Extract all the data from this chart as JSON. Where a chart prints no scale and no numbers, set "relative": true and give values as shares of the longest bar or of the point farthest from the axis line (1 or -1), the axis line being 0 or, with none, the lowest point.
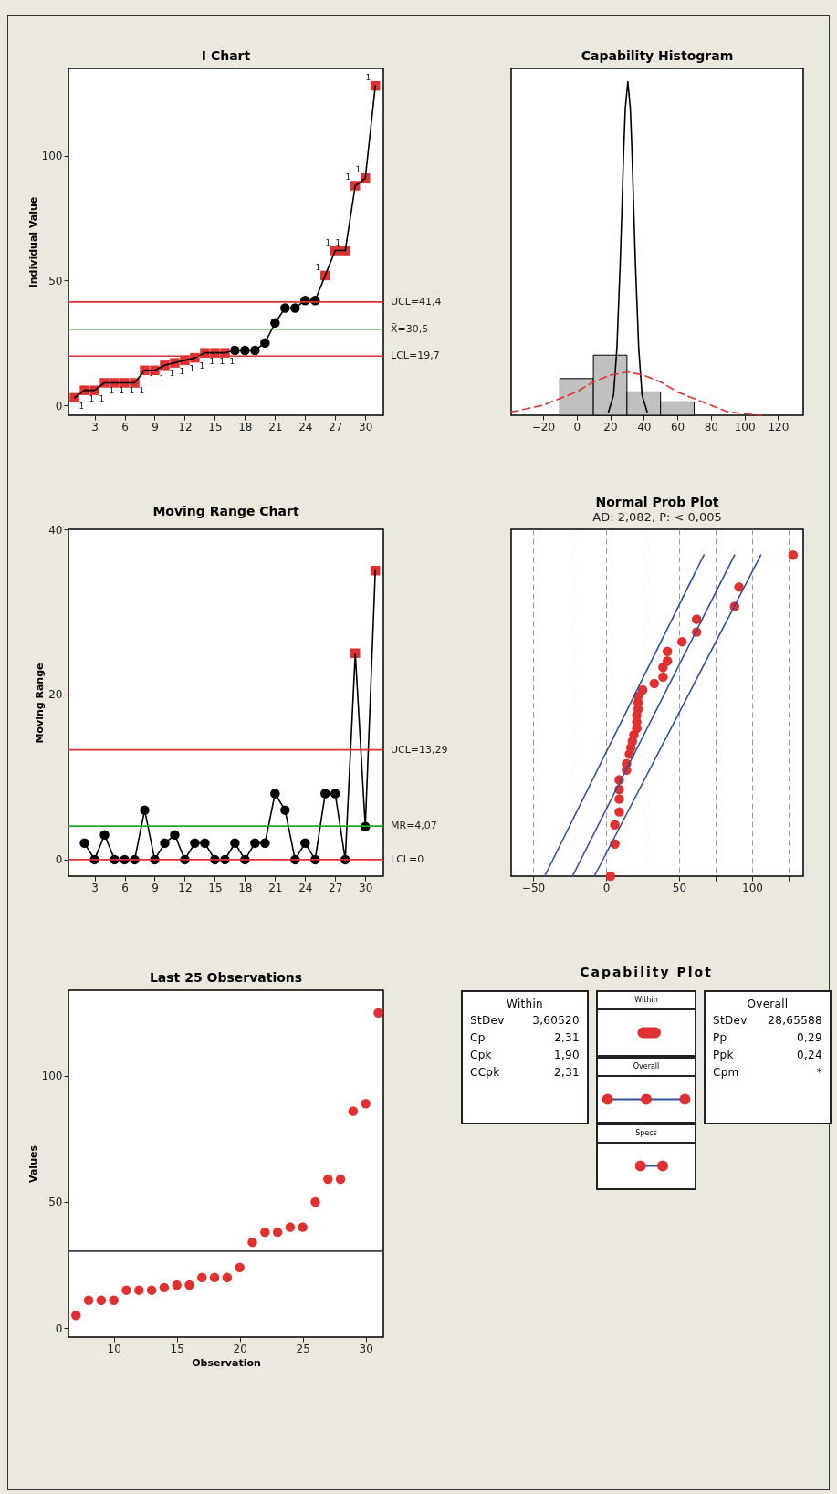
{
  "chart_data": [
    {
      "type": "line",
      "title": "I Chart",
      "ylabel": "Individual Value",
      "xlim": [
        0.4,
        31.8
      ],
      "xticks": [
        3,
        6,
        9,
        12,
        15,
        18,
        21,
        24,
        27,
        30
      ],
      "ylim": [
        -4,
        135
      ],
      "yticks": [
        0,
        50,
        100
      ],
      "x": [
        1,
        2,
        3,
        4,
        5,
        6,
        7,
        8,
        9,
        10,
        11,
        12,
        13,
        14,
        15,
        16,
        17,
        18,
        19,
        20,
        21,
        22,
        23,
        24,
        25,
        26,
        27,
        28,
        29,
        30,
        31
      ],
      "series": [
        {
          "color": "#000000",
          "marker": "none",
          "values": [
            3,
            6,
            6,
            9,
            9,
            9,
            9,
            14,
            14,
            16,
            17,
            18,
            19,
            21,
            21,
            21,
            22,
            22,
            22,
            25,
            33,
            39,
            39,
            42,
            42,
            52,
            62,
            62,
            88,
            91,
            128
          ]
        },
        {
          "type": "scatter",
          "color": "#e03030",
          "marker": "square",
          "values": [
            3,
            6,
            6,
            9,
            9,
            9,
            9,
            14,
            14,
            16,
            17,
            18,
            19,
            21,
            21,
            21,
            null,
            null,
            null,
            null,
            null,
            null,
            null,
            null,
            null,
            52,
            62,
            62,
            88,
            91,
            128
          ]
        },
        {
          "type": "scatter",
          "color": "#000000",
          "marker": "circle",
          "values": [
            null,
            null,
            null,
            null,
            null,
            null,
            null,
            null,
            null,
            null,
            null,
            null,
            null,
            null,
            null,
            null,
            22,
            22,
            22,
            25,
            33,
            39,
            39,
            42,
            42,
            null,
            null,
            null,
            null,
            null,
            null
          ]
        }
      ],
      "ref_lines": [
        {
          "axis": "y",
          "value": 41.4,
          "label": "UCL=41,4",
          "color": "#e03030"
        },
        {
          "axis": "y",
          "value": 30.5,
          "label": "X̄=30,5",
          "color": "#22aa22"
        },
        {
          "axis": "y",
          "value": 19.7,
          "label": "LCL=19,7",
          "color": "#e03030"
        }
      ],
      "annotations": [
        {
          "text": "1",
          "x": 1,
          "y": 3
        },
        {
          "text": "1",
          "x": 2,
          "y": 6
        },
        {
          "text": "1",
          "x": 3,
          "y": 6
        },
        {
          "text": "1",
          "x": 4,
          "y": 9
        },
        {
          "text": "1",
          "x": 5,
          "y": 9
        },
        {
          "text": "1",
          "x": 6,
          "y": 9
        },
        {
          "text": "1",
          "x": 7,
          "y": 9
        },
        {
          "text": "1",
          "x": 8,
          "y": 14
        },
        {
          "text": "1",
          "x": 9,
          "y": 14
        },
        {
          "text": "1",
          "x": 10,
          "y": 16
        },
        {
          "text": "1",
          "x": 11,
          "y": 17
        },
        {
          "text": "1",
          "x": 12,
          "y": 18
        },
        {
          "text": "1",
          "x": 13,
          "y": 19
        },
        {
          "text": "1",
          "x": 14,
          "y": 21
        },
        {
          "text": "1",
          "x": 15,
          "y": 21
        },
        {
          "text": "1",
          "x": 16,
          "y": 21
        },
        {
          "text": "1",
          "x": 26,
          "y": 52
        },
        {
          "text": "1",
          "x": 27,
          "y": 62
        },
        {
          "text": "1",
          "x": 28,
          "y": 62
        },
        {
          "text": "1",
          "x": 29,
          "y": 88
        },
        {
          "text": "1",
          "x": 30,
          "y": 91
        },
        {
          "text": "1",
          "x": 31,
          "y": 128
        }
      ]
    },
    {
      "type": "histogram",
      "title": "Capability Histogram",
      "relative": true,
      "bins": [
        -10,
        10,
        30,
        50,
        70
      ],
      "values": [
        0.11,
        0.18,
        0.07,
        0.04
      ],
      "color": "#c0c0c0",
      "xlim": [
        -39,
        135
      ],
      "xticks": [
        -20,
        0,
        20,
        40,
        60,
        80,
        100,
        120
      ],
      "series": [
        {
          "type": "line",
          "color": "#000000",
          "x": [
            19,
            22,
            24,
            26,
            27,
            28,
            29,
            30.5,
            32,
            33,
            34,
            35,
            37,
            39,
            42
          ],
          "values": [
            0.01,
            0.06,
            0.2,
            0.46,
            0.62,
            0.79,
            0.92,
            1,
            0.92,
            0.79,
            0.62,
            0.46,
            0.2,
            0.06,
            0.01
          ]
        },
        {
          "type": "line",
          "color": "#e03030",
          "line_style": "dashed",
          "x": [
            -39,
            -20,
            -10,
            0,
            10,
            20,
            30.5,
            40,
            50,
            60,
            70,
            80,
            90,
            110
          ],
          "values": [
            0.01,
            0.03,
            0.05,
            0.07,
            0.1,
            0.12,
            0.13,
            0.12,
            0.1,
            0.07,
            0.05,
            0.03,
            0.01,
            0
          ]
        }
      ]
    },
    {
      "type": "line",
      "title": "Moving Range Chart",
      "ylabel": "Moving Range",
      "xlim": [
        0.4,
        31.8
      ],
      "xticks": [
        3,
        6,
        9,
        12,
        15,
        18,
        21,
        24,
        27,
        30
      ],
      "ylim": [
        -2,
        40
      ],
      "yticks": [
        0,
        20,
        40
      ],
      "x": [
        2,
        3,
        4,
        5,
        6,
        7,
        8,
        9,
        10,
        11,
        12,
        13,
        14,
        15,
        16,
        17,
        18,
        19,
        20,
        21,
        22,
        23,
        24,
        25,
        26,
        27,
        28,
        29,
        30,
        31
      ],
      "series": [
        {
          "color": "#000000",
          "marker": "none",
          "values": [
            2,
            0,
            3,
            0,
            0,
            0,
            6,
            0,
            2,
            3,
            0,
            2,
            2,
            0,
            0,
            2,
            0,
            2,
            2,
            8,
            6,
            0,
            2,
            0,
            8,
            8,
            0,
            25,
            4,
            35
          ]
        },
        {
          "type": "scatter",
          "color": "#e03030",
          "marker": "square",
          "values": [
            null,
            null,
            null,
            null,
            null,
            null,
            null,
            null,
            null,
            null,
            null,
            null,
            null,
            null,
            null,
            null,
            null,
            null,
            null,
            null,
            null,
            null,
            null,
            null,
            null,
            null,
            null,
            25,
            null,
            35
          ]
        },
        {
          "type": "scatter",
          "color": "#000000",
          "marker": "circle",
          "values": [
            2,
            0,
            3,
            0,
            0,
            0,
            6,
            0,
            2,
            3,
            0,
            2,
            2,
            0,
            0,
            2,
            0,
            2,
            2,
            8,
            6,
            0,
            2,
            0,
            8,
            8,
            0,
            null,
            4,
            null
          ]
        }
      ],
      "ref_lines": [
        {
          "axis": "y",
          "value": 13.29,
          "label": "UCL=13,29",
          "color": "#e03030"
        },
        {
          "axis": "y",
          "value": 4.07,
          "label": "M̄R̄=4,07",
          "color": "#22aa22"
        },
        {
          "axis": "y",
          "value": 0,
          "label": "LCL=0",
          "color": "#e03030"
        }
      ]
    },
    {
      "type": "line",
      "title": "Normal Prob Plot",
      "subtitle": "AD: 2,082, P: < 0,005",
      "relative": true,
      "grid": "x",
      "xlim": [
        -65,
        135
      ],
      "xticks": [
        -50,
        {
          "value": -25,
          "label": null
        },
        0,
        {
          "value": 25,
          "label": null
        },
        50,
        {
          "value": 75,
          "label": null
        },
        100,
        {
          "value": 125,
          "label": null
        }
      ],
      "series": [
        {
          "type": "scatter",
          "color": "#e03030",
          "marker": "circle",
          "x": [
            3,
            6,
            6,
            9,
            9,
            9,
            9,
            14,
            14,
            16,
            17,
            18,
            19,
            21,
            21,
            21,
            22,
            22,
            22,
            25,
            33,
            39,
            39,
            42,
            42,
            52,
            62,
            62,
            88,
            91,
            128
          ],
          "values": [
            0,
            0.1,
            0.16,
            0.2,
            0.24,
            0.27,
            0.3,
            0.33,
            0.35,
            0.38,
            0.4,
            0.42,
            0.44,
            0.46,
            0.48,
            0.5,
            0.52,
            0.54,
            0.56,
            0.58,
            0.6,
            0.62,
            0.65,
            0.67,
            0.7,
            0.73,
            0.76,
            0.8,
            0.84,
            0.9,
            1
          ]
        },
        {
          "type": "line",
          "color": "#3050a0",
          "x": [
            -42,
            67
          ],
          "values": [
            0,
            1
          ]
        },
        {
          "type": "line",
          "color": "#3050a0",
          "x": [
            -23,
            88
          ],
          "values": [
            0,
            1
          ]
        },
        {
          "type": "line",
          "color": "#3050a0",
          "x": [
            -8,
            106
          ],
          "values": [
            0,
            1
          ]
        }
      ]
    },
    {
      "type": "scatter",
      "title": "Last 25 Observations",
      "xlabel": "Observation",
      "ylabel": "Values",
      "color": "#e03030",
      "marker": "circle",
      "xlim": [
        6.4,
        31.4
      ],
      "xticks": [
        10,
        15,
        20,
        25,
        30
      ],
      "ylim": [
        -3.6,
        134
      ],
      "yticks": [
        0,
        50,
        100
      ],
      "x": [
        7,
        8,
        9,
        10,
        11,
        12,
        13,
        14,
        15,
        16,
        17,
        18,
        19,
        20,
        21,
        22,
        23,
        24,
        25,
        26,
        27,
        28,
        29,
        30,
        31
      ],
      "values": [
        5,
        11,
        11,
        11,
        15,
        15,
        15,
        16,
        17,
        17,
        20,
        20,
        20,
        24,
        34,
        38,
        38,
        40,
        40,
        50,
        59,
        59,
        86,
        89,
        125
      ],
      "ref_lines": [
        {
          "axis": "y",
          "value": 30.5,
          "color": "#404040"
        }
      ]
    },
    {
      "type": "other",
      "title": "Capability Plot",
      "categories": [
        "Within",
        "Overall",
        "Specs"
      ]
    },
    {
      "type": "other",
      "title": "Within",
      "annotations": [
        "StDev 3,60520",
        "Cp 2,31",
        "Cpk 1,90",
        "CCpk 2,31"
      ]
    },
    {
      "type": "other",
      "title": "Overall",
      "annotations": [
        "StDev 28,65588",
        "Pp 0,29",
        "Ppk 0,24",
        "Cpm *"
      ]
    }
  ]
}
